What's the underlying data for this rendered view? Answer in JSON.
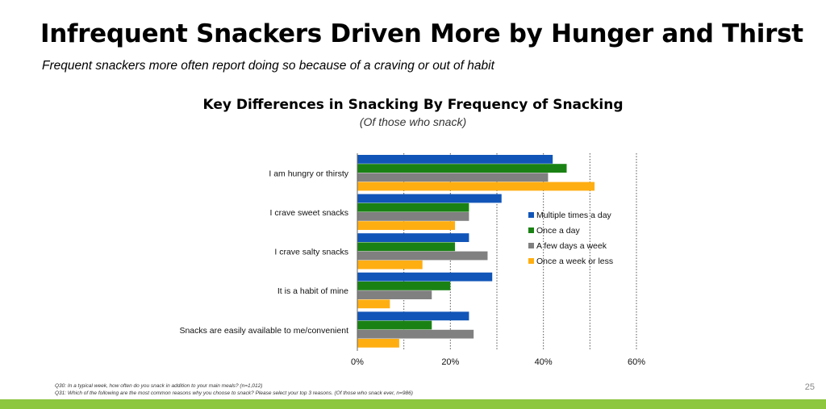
{
  "slide": {
    "title": "Infrequent Snackers Driven More by Hunger and Thirst",
    "subtitle": "Frequent snackers more often report doing so because of a craving or out of habit",
    "footnote_1": "Q30: In a typical week, how often do you snack in addition to your main meals? (n=1,012)",
    "footnote_2": "Q31: Which of the following are the most common reasons why you choose to snack? Please select your top 3 reasons. (Of those who snack ever, n=986)",
    "page_number": "25"
  },
  "chart_data": {
    "type": "bar",
    "orientation": "horizontal",
    "title": "Key Differences in Snacking By Frequency of Snacking",
    "subtitle": "(Of those who snack)",
    "categories": [
      "I am hungry or thirsty",
      "I crave sweet snacks",
      "I crave salty snacks",
      "It is a habit of mine",
      "Snacks are easily available to me/convenient"
    ],
    "series": [
      {
        "name": "Multiple times a day",
        "color": "#1155b8",
        "values": [
          42,
          31,
          24,
          29,
          24
        ]
      },
      {
        "name": "Once a day",
        "color": "#1a8214",
        "values": [
          45,
          24,
          21,
          20,
          16
        ]
      },
      {
        "name": "A few days a week",
        "color": "#808080",
        "values": [
          41,
          24,
          28,
          16,
          25
        ]
      },
      {
        "name": "Once a week or less",
        "color": "#ffae12",
        "values": [
          51,
          21,
          14,
          7,
          9
        ]
      }
    ],
    "xlim": [
      0,
      60
    ],
    "tick_labels": [
      "0%",
      "20%",
      "40%",
      "60%"
    ],
    "tick_values": [
      0,
      20,
      40,
      60
    ],
    "grid_values": [
      10,
      20,
      30,
      40,
      50,
      60
    ],
    "grid": "vertical dotted",
    "legend_position": "inside-right"
  }
}
